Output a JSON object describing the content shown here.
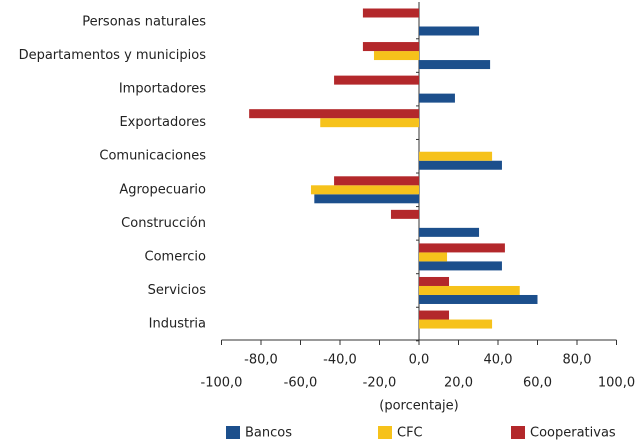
{
  "chart_data": {
    "type": "barh",
    "xlabel": "(porcentaje)",
    "categories": [
      "Personas naturales",
      "Departamentos y municipios",
      "Importadores",
      "Exportadores",
      "Comunicaciones",
      "Agropecuario",
      "Construcción",
      "Comercio",
      "Servicios",
      "Industria"
    ],
    "series": [
      {
        "name": "Bancos",
        "color": "#1c4f8c",
        "values": [
          30.4,
          36,
          18.2,
          null,
          42,
          -53,
          30.4,
          42,
          60,
          null
        ]
      },
      {
        "name": "CFC",
        "color": "#f6c21b",
        "values": [
          null,
          -22.8,
          null,
          -50,
          37,
          -54.7,
          null,
          14.2,
          51,
          37
        ]
      },
      {
        "name": "Cooperativas",
        "color": "#b3282b",
        "values": [
          -28.4,
          -28.4,
          -43,
          -86,
          null,
          -43,
          -14.2,
          43.5,
          15.2,
          15.2
        ]
      }
    ],
    "xlim": [
      -100,
      100
    ],
    "xticks": [
      {
        "value": -100,
        "label": "-100,0"
      },
      {
        "value": -80,
        "label": "-80,0"
      },
      {
        "value": -60,
        "label": "-60,0"
      },
      {
        "value": -40,
        "label": "-40,0"
      },
      {
        "value": -20,
        "label": "-20,0"
      },
      {
        "value": 0,
        "label": "0,0"
      },
      {
        "value": 20,
        "label": "20,0"
      },
      {
        "value": 40,
        "label": "40,0"
      },
      {
        "value": 60,
        "label": "60,0"
      },
      {
        "value": 80,
        "label": "80,0"
      },
      {
        "value": 100,
        "label": "100,0"
      }
    ],
    "legend": "bottom"
  }
}
